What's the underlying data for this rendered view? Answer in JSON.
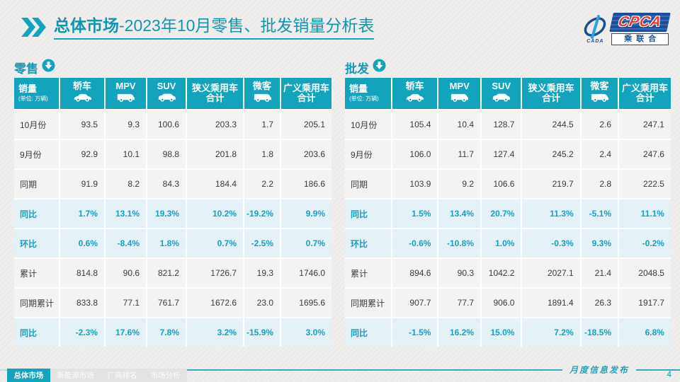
{
  "title": {
    "bold": "总体市场",
    "rest": "-2023年10月零售、批发销量分析表"
  },
  "logo": {
    "cpca": "CPCA",
    "association": "乘联合",
    "cada": "CADA"
  },
  "watermark": "CPCA 乘联合",
  "columns": {
    "main": "销量",
    "unit": "(单位: 万辆)",
    "cols": [
      {
        "label": "轿车",
        "icon": "sedan-icon"
      },
      {
        "label": "MPV",
        "icon": "van-icon"
      },
      {
        "label": "SUV",
        "icon": "suv-icon"
      },
      {
        "label": "狭义乘用车",
        "label2": "合计"
      },
      {
        "label": "微客",
        "icon": "van-icon"
      },
      {
        "label": "广义乘用车",
        "label2": "合计"
      }
    ]
  },
  "tables": [
    {
      "section": "零售",
      "rows": [
        {
          "label": "10月份",
          "type": "data",
          "values": [
            "93.5",
            "9.3",
            "100.6",
            "203.3",
            "1.7",
            "205.1"
          ]
        },
        {
          "label": "9月份",
          "type": "data",
          "values": [
            "92.9",
            "10.1",
            "98.8",
            "201.8",
            "1.8",
            "203.6"
          ]
        },
        {
          "label": "同期",
          "type": "data",
          "values": [
            "91.9",
            "8.2",
            "84.3",
            "184.4",
            "2.2",
            "186.6"
          ]
        },
        {
          "label": "同比",
          "type": "pct",
          "values": [
            "1.7%",
            "13.1%",
            "19.3%",
            "10.2%",
            "-19.2%",
            "9.9%"
          ]
        },
        {
          "label": "环比",
          "type": "pct",
          "values": [
            "0.6%",
            "-8.4%",
            "1.8%",
            "0.7%",
            "-2.5%",
            "0.7%"
          ]
        },
        {
          "label": "累计",
          "type": "data",
          "values": [
            "814.8",
            "90.6",
            "821.2",
            "1726.7",
            "19.3",
            "1746.0"
          ]
        },
        {
          "label": "同期累计",
          "type": "data",
          "values": [
            "833.8",
            "77.1",
            "761.7",
            "1672.6",
            "23.0",
            "1695.6"
          ]
        },
        {
          "label": "同比",
          "type": "pct",
          "values": [
            "-2.3%",
            "17.6%",
            "7.8%",
            "3.2%",
            "-15.9%",
            "3.0%"
          ]
        }
      ]
    },
    {
      "section": "批发",
      "rows": [
        {
          "label": "10月份",
          "type": "data",
          "values": [
            "105.4",
            "10.4",
            "128.7",
            "244.5",
            "2.6",
            "247.1"
          ]
        },
        {
          "label": "9月份",
          "type": "data",
          "values": [
            "106.0",
            "11.7",
            "127.4",
            "245.2",
            "2.4",
            "247.6"
          ]
        },
        {
          "label": "同期",
          "type": "data",
          "values": [
            "103.9",
            "9.2",
            "106.6",
            "219.7",
            "2.8",
            "222.5"
          ]
        },
        {
          "label": "同比",
          "type": "pct",
          "values": [
            "1.5%",
            "13.4%",
            "20.7%",
            "11.3%",
            "-5.1%",
            "11.1%"
          ]
        },
        {
          "label": "环比",
          "type": "pct",
          "values": [
            "-0.6%",
            "-10.8%",
            "1.0%",
            "-0.3%",
            "9.3%",
            "-0.2%"
          ]
        },
        {
          "label": "累计",
          "type": "data",
          "values": [
            "894.6",
            "90.3",
            "1042.2",
            "2027.1",
            "21.4",
            "2048.5"
          ]
        },
        {
          "label": "同期累计",
          "type": "data",
          "values": [
            "907.7",
            "77.7",
            "906.0",
            "1891.4",
            "26.3",
            "1917.7"
          ]
        },
        {
          "label": "同比",
          "type": "pct",
          "values": [
            "-1.5%",
            "16.2%",
            "15.0%",
            "7.2%",
            "-18.5%",
            "6.8%"
          ]
        }
      ]
    }
  ],
  "footer": {
    "tabs": [
      {
        "label": "总体市场",
        "active": true
      },
      {
        "label": "新能源市场",
        "active": false
      },
      {
        "label": "厂商排名",
        "active": false
      },
      {
        "label": "市场分析",
        "active": false
      }
    ],
    "note": "月度信息发布",
    "page": "4"
  },
  "colors": {
    "accent_teal": "#14a3bd",
    "pct_text": "#189fc2",
    "pct_row_bg": "#e4f1f7",
    "logo_blue": "#1b4e9b",
    "logo_red": "#e8382f"
  }
}
